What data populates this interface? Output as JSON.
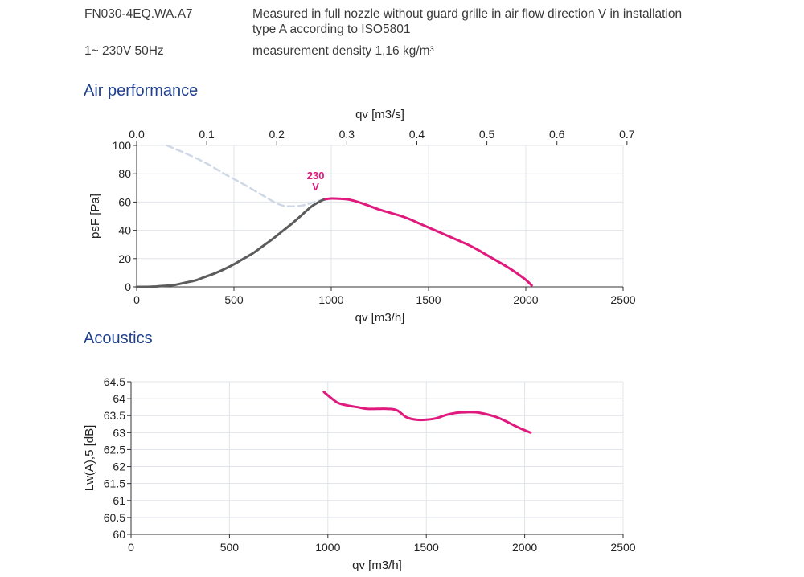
{
  "header": {
    "model": "FN030-4EQ.WA.A7",
    "supply": "1~ 230V 50Hz",
    "measure_line1": "Measured in full nozzle without guard grille in air flow direction V in installation",
    "measure_line2": "type A according to ISO5801",
    "density": "measurement density 1,16 kg/m³"
  },
  "colors": {
    "accent": "#e0197d",
    "title": "#1f3f8f",
    "inactive": "#5c5c5c",
    "dashed": "#cfd8e6"
  },
  "chart_data": [
    {
      "type": "line",
      "title": "Air performance",
      "xlabel": "qv [m3/h]",
      "x2label": "qv [m3/s]",
      "ylabel": "psF [Pa]",
      "xlim": [
        0,
        2500
      ],
      "ylim": [
        0,
        100
      ],
      "x_ticks": [
        0,
        500,
        1000,
        1500,
        2000,
        2500
      ],
      "y_ticks": [
        0,
        20,
        40,
        60,
        80,
        100
      ],
      "x2_ticks": [
        "0.0",
        "0.1",
        "0.2",
        "0.3",
        "0.4",
        "0.5",
        "0.6",
        "0.7"
      ],
      "x2_values": [
        0.0,
        0.1,
        0.2,
        0.3,
        0.4,
        0.5,
        0.6,
        0.7
      ],
      "grid": true,
      "annotation": {
        "line1": "230",
        "line2": "V"
      },
      "series": [
        {
          "name": "230 V",
          "style": "solid-accent",
          "x": [
            970,
            1000,
            1050,
            1100,
            1150,
            1200,
            1250,
            1300,
            1350,
            1400,
            1450,
            1500,
            1550,
            1600,
            1650,
            1700,
            1750,
            1800,
            1850,
            1900,
            1950,
            2000,
            2030
          ],
          "y": [
            62,
            62.5,
            62.3,
            61.5,
            59.5,
            57,
            54.5,
            52.5,
            50.5,
            48,
            45,
            42,
            39,
            36,
            33,
            30,
            26.5,
            22.5,
            18.5,
            14.5,
            10,
            5,
            1
          ]
        },
        {
          "style": "solid-grey",
          "x": [
            0,
            50,
            100,
            150,
            200,
            250,
            300,
            350,
            400,
            450,
            500,
            550,
            600,
            650,
            700,
            750,
            800,
            850,
            900,
            950,
            970
          ],
          "y": [
            0,
            0,
            0.3,
            0.8,
            1.5,
            3,
            4.5,
            7,
            9.5,
            12.5,
            16,
            20,
            24,
            29,
            34,
            39.5,
            45,
            51,
            57,
            61,
            62
          ]
        },
        {
          "style": "dashed",
          "x": [
            155,
            250,
            350,
            450,
            550,
            650,
            700,
            750,
            800,
            850,
            900,
            950,
            970
          ],
          "y": [
            100,
            94.5,
            88,
            80,
            72.5,
            64.5,
            60.5,
            57.5,
            57,
            57.5,
            59.5,
            61.5,
            62
          ]
        }
      ]
    },
    {
      "type": "line",
      "title": "Acoustics",
      "xlabel": "qv [m3/h]",
      "ylabel": "Lw(A),5 [dB]",
      "xlim": [
        0,
        2500
      ],
      "ylim": [
        60,
        64.5
      ],
      "x_ticks": [
        0,
        500,
        1000,
        1500,
        2000,
        2500
      ],
      "y_ticks": [
        "60",
        "60.5",
        "61",
        "61.5",
        "62",
        "62.5",
        "63",
        "63.5",
        "64",
        "64.5"
      ],
      "y_values": [
        60,
        60.5,
        61,
        61.5,
        62,
        62.5,
        63,
        63.5,
        64,
        64.5
      ],
      "grid": true,
      "series": [
        {
          "style": "solid-accent",
          "x": [
            980,
            1000,
            1050,
            1100,
            1150,
            1200,
            1250,
            1300,
            1350,
            1400,
            1450,
            1500,
            1550,
            1600,
            1650,
            1700,
            1750,
            1800,
            1850,
            1900,
            1950,
            2000,
            2030
          ],
          "y": [
            64.2,
            64.1,
            63.88,
            63.8,
            63.75,
            63.7,
            63.7,
            63.7,
            63.66,
            63.45,
            63.38,
            63.38,
            63.42,
            63.52,
            63.58,
            63.6,
            63.6,
            63.55,
            63.47,
            63.35,
            63.2,
            63.07,
            63.0
          ]
        }
      ]
    }
  ]
}
